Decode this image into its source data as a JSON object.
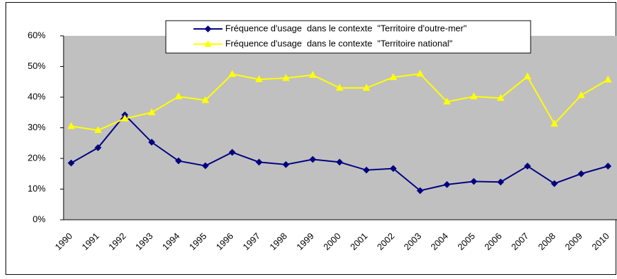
{
  "chart_data": {
    "type": "line",
    "categories": [
      "1990",
      "1991",
      "1992",
      "1993",
      "1994",
      "1995",
      "1996",
      "1997",
      "1998",
      "1999",
      "2000",
      "2001",
      "2002",
      "2003",
      "2004",
      "2005",
      "2006",
      "2007",
      "2008",
      "2009",
      "2010"
    ],
    "series": [
      {
        "name": "Fréquence d'usage  dans le contexte  \"Territoire d'outre-mer\"",
        "color": "#000080",
        "marker": "diamond",
        "values": [
          18.5,
          23.5,
          34.2,
          25.3,
          19.2,
          17.6,
          22,
          18.8,
          18,
          19.7,
          18.8,
          16.2,
          16.7,
          9.5,
          11.5,
          12.5,
          12.3,
          17.5,
          11.8,
          15,
          17.5
        ]
      },
      {
        "name": "Fréquence d'usage  dans le contexte  \"Territoire national\"",
        "color": "#ffff00",
        "marker": "triangle",
        "values": [
          30.5,
          29.2,
          33,
          35,
          40.2,
          39,
          47.5,
          45.8,
          46.2,
          47.2,
          43,
          43,
          46.5,
          47.6,
          38.5,
          40.2,
          39.7,
          46.7,
          31.3,
          40.6,
          45.7
        ]
      }
    ],
    "ylim": [
      0,
      60
    ],
    "yticks": [
      {
        "value": 0,
        "label": "0%"
      },
      {
        "value": 10,
        "label": "10%"
      },
      {
        "value": 20,
        "label": "20%"
      },
      {
        "value": 30,
        "label": "30%"
      },
      {
        "value": 40,
        "label": "40%"
      },
      {
        "value": 50,
        "label": "50%"
      },
      {
        "value": 60,
        "label": "60%"
      }
    ],
    "grid": false,
    "legend": "top",
    "plot_background": "#c0c0c0"
  }
}
